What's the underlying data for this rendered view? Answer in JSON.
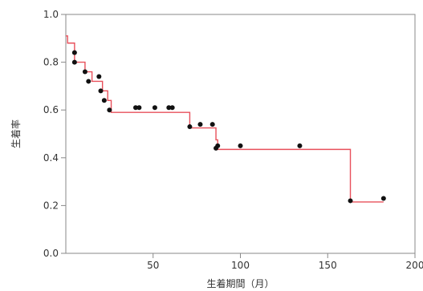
{
  "chart_data": {
    "type": "line",
    "xlabel": "生着期間（月）",
    "ylabel": "生着率",
    "xlim": [
      0,
      200
    ],
    "ylim": [
      0,
      1.0
    ],
    "x_ticks": [
      50,
      100,
      150,
      200
    ],
    "x_tick_labels": [
      "50",
      "100",
      "150",
      "200"
    ],
    "y_ticks": [
      0,
      0.2,
      0.4,
      0.6,
      0.8,
      1.0
    ],
    "y_tick_labels": [
      "0.0",
      "0.2",
      "0.4",
      "0.6",
      "0.8",
      "1.0"
    ],
    "grid": false,
    "series": [
      {
        "kind": "step",
        "color": "#e8505b",
        "x": [
          0,
          1,
          1,
          5,
          5,
          11,
          11,
          15,
          15,
          21,
          21,
          24,
          24,
          26,
          26,
          71,
          71,
          86,
          86,
          87,
          87,
          163,
          163,
          182
        ],
        "y": [
          0.91,
          0.91,
          0.88,
          0.88,
          0.8,
          0.8,
          0.76,
          0.76,
          0.72,
          0.72,
          0.68,
          0.68,
          0.64,
          0.64,
          0.59,
          0.59,
          0.525,
          0.525,
          0.475,
          0.475,
          0.435,
          0.435,
          0.215,
          0.215
        ]
      },
      {
        "kind": "scatter",
        "color": "#111111",
        "x": [
          5,
          5,
          11,
          13,
          19,
          20,
          22,
          25,
          40,
          42,
          51,
          59,
          61,
          71,
          77,
          84,
          86,
          87,
          100,
          134,
          163,
          182
        ],
        "y": [
          0.84,
          0.8,
          0.76,
          0.72,
          0.74,
          0.68,
          0.64,
          0.6,
          0.61,
          0.61,
          0.61,
          0.61,
          0.61,
          0.53,
          0.54,
          0.54,
          0.44,
          0.45,
          0.45,
          0.45,
          0.22,
          0.23
        ]
      }
    ]
  }
}
